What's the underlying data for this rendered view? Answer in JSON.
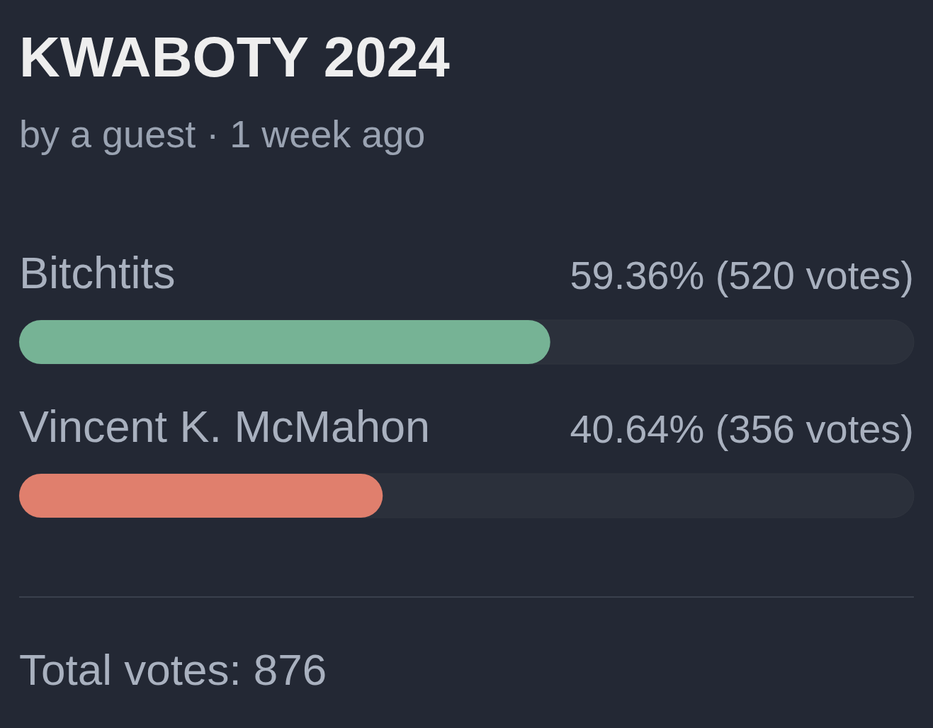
{
  "chart_data": {
    "type": "bar",
    "orientation": "horizontal",
    "title": "KWABOTY 2024",
    "subtitle": "by a guest · 1 week ago",
    "categories": [
      "Bitchtits",
      "Vincent K. McMahon"
    ],
    "values": [
      59.36,
      40.64
    ],
    "colors": [
      "#76b395",
      "#e07f6d"
    ],
    "value_labels": [
      "59.36% (520 votes)",
      "40.64% (356 votes)"
    ],
    "xlim": [
      0,
      100
    ],
    "tick_labels": "y",
    "annotations": [
      "Total votes: 876"
    ]
  }
}
